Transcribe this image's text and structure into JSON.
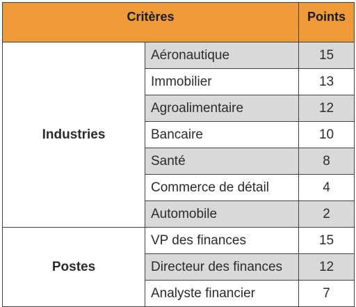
{
  "header": {
    "criteria_label": "Critères",
    "points_label": "Points"
  },
  "colors": {
    "header_background": "#ef9a38",
    "shaded_row": "#d9d9d9",
    "border": "#3f3f3f"
  },
  "groups": [
    {
      "label": "Industries",
      "rows": [
        {
          "item": "Aéronautique",
          "points": "15",
          "shaded": true
        },
        {
          "item": "Immobilier",
          "points": "13",
          "shaded": false
        },
        {
          "item": "Agroalimentaire",
          "points": "12",
          "shaded": true
        },
        {
          "item": "Bancaire",
          "points": "10",
          "shaded": false
        },
        {
          "item": "Santé",
          "points": "8",
          "shaded": true
        },
        {
          "item": "Commerce de détail",
          "points": "4",
          "shaded": false
        },
        {
          "item": "Automobile",
          "points": "2",
          "shaded": true
        }
      ]
    },
    {
      "label": "Postes",
      "rows": [
        {
          "item": "VP des finances",
          "points": "15",
          "shaded": false
        },
        {
          "item": "Directeur des finances",
          "points": "12",
          "shaded": true
        },
        {
          "item": "Analyste financier",
          "points": "7",
          "shaded": false
        }
      ]
    }
  ]
}
